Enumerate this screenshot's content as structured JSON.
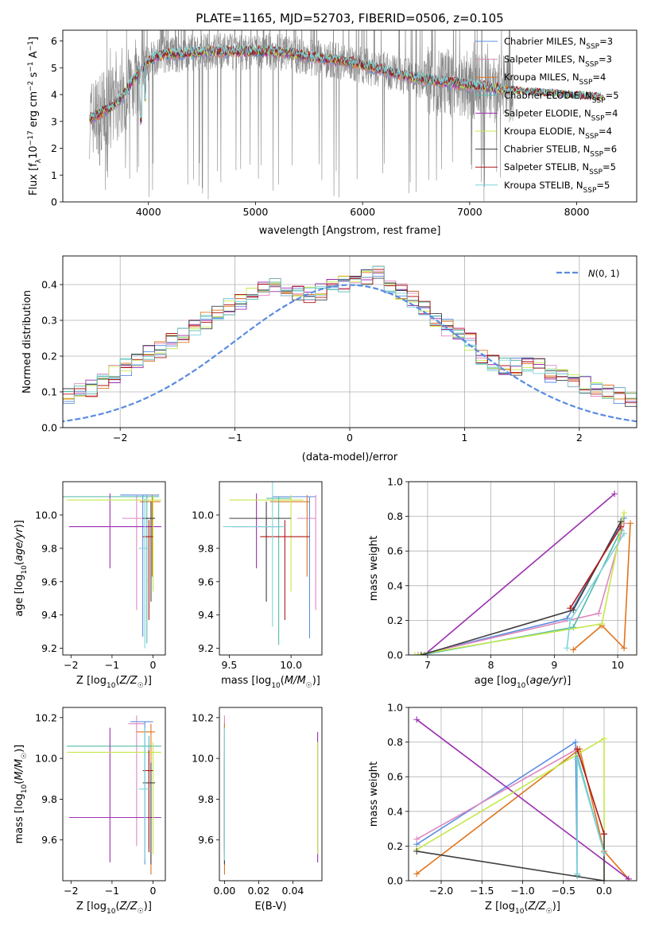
{
  "colors": {
    "Chabrier MILES": "#5a8fe0",
    "Salpeter MILES": "#e088c0",
    "Kroupa MILES": "#e0741c",
    "Chabrier ELODIE": "#55bba8",
    "Salpeter ELODIE": "#9c2fb0",
    "Kroupa ELODIE": "#c4e84a",
    "Chabrier STELIB": "#404040",
    "Salpeter STELIB": "#b01818",
    "Kroupa STELIB": "#7fd4dc",
    "data": "#888888",
    "normal": "#5b8be0"
  },
  "chart_data": [
    {
      "id": "spectrum",
      "type": "line",
      "title": "PLATE=1165, MJD=52703, FIBERID=0506, z=0.105",
      "xlabel": "wavelength [Angstrom, rest frame]",
      "ylabel_parts": [
        "Flux [f",
        "λ",
        "10",
        "−17",
        " erg cm",
        "−2",
        " s",
        "−1",
        " A",
        "−1",
        "]"
      ],
      "xlim": [
        3200,
        8560
      ],
      "ylim": [
        0,
        6.4
      ],
      "xticks": [
        4000,
        5000,
        6000,
        7000,
        8000
      ],
      "yticks": [
        0,
        1,
        2,
        3,
        4,
        5,
        6
      ],
      "continuum": {
        "x": [
          3450,
          3550,
          3650,
          3750,
          3850,
          3950,
          4050,
          4150,
          4300,
          4500,
          4700,
          4900,
          5100,
          5300,
          5500,
          5700,
          5900,
          6100,
          6300,
          6500,
          6700,
          6900,
          7100,
          7300
        ],
        "y": [
          3.1,
          3.3,
          3.5,
          3.9,
          4.5,
          5.0,
          5.4,
          5.5,
          5.5,
          5.6,
          5.6,
          5.6,
          5.6,
          5.55,
          5.4,
          5.3,
          5.2,
          5.0,
          4.8,
          4.6,
          4.5,
          4.4,
          4.3,
          4.2
        ]
      },
      "legend": [
        {
          "name": "Chabrier MILES",
          "sub": "SSP",
          "n": "3"
        },
        {
          "name": "Salpeter MILES",
          "sub": "SSP",
          "n": "3"
        },
        {
          "name": "Kroupa MILES",
          "sub": "SSP",
          "n": "4"
        },
        {
          "name": "Chabrier ELODIE",
          "sub": "SSP",
          "n": "5"
        },
        {
          "name": "Salpeter ELODIE",
          "sub": "SSP",
          "n": "4"
        },
        {
          "name": "Kroupa ELODIE",
          "sub": "SSP",
          "n": "4"
        },
        {
          "name": "Chabrier STELIB",
          "sub": "SSP",
          "n": "6"
        },
        {
          "name": "Salpeter STELIB",
          "sub": "SSP",
          "n": "5"
        },
        {
          "name": "Kroupa STELIB",
          "sub": "SSP",
          "n": "5"
        }
      ],
      "legend_placement": "upper-right"
    },
    {
      "id": "residuals",
      "type": "histogram",
      "xlabel": "(data-model)/error",
      "ylabel": "Normed distribution",
      "xlim": [
        -2.5,
        2.5
      ],
      "ylim": [
        0,
        0.48
      ],
      "xticks": [
        -2,
        -1,
        0,
        1,
        2
      ],
      "yticks": [
        0.0,
        0.1,
        0.2,
        0.3,
        0.4
      ],
      "grid": true,
      "bin_width": 0.1,
      "base_heights": [
        0.03,
        0.035,
        0.04,
        0.045,
        0.05,
        0.055,
        0.06,
        0.065,
        0.07,
        0.08,
        0.09,
        0.1,
        0.11,
        0.13,
        0.15,
        0.17,
        0.19,
        0.21,
        0.22,
        0.24,
        0.26,
        0.28,
        0.3,
        0.32,
        0.34,
        0.35,
        0.37,
        0.39,
        0.4,
        0.39,
        0.38,
        0.37,
        0.38,
        0.39,
        0.4,
        0.41,
        0.42,
        0.43,
        0.4,
        0.38,
        0.36,
        0.33,
        0.3,
        0.28,
        0.26,
        0.24,
        0.2,
        0.18,
        0.17,
        0.17,
        0.18,
        0.17,
        0.15,
        0.14,
        0.13,
        0.12,
        0.11,
        0.1,
        0.09,
        0.08,
        0.07,
        0.065,
        0.06,
        0.055,
        0.05,
        0.045,
        0.04,
        0.035,
        0.03,
        0.03
      ],
      "legend_label": "N(0,1)",
      "legend_placement": "upper-right"
    },
    {
      "id": "z-age",
      "type": "errorbar",
      "xlabel": "Z [log10(Z/Z☉)]",
      "ylabel": "age  [log10(age/yr)]",
      "xlim": [
        -2.2,
        0.3
      ],
      "ylim": [
        9.16,
        10.2
      ],
      "xticks": [
        -2,
        -1,
        0
      ],
      "yticks": [
        9.2,
        9.4,
        9.6,
        9.8,
        10.0
      ],
      "points": [
        {
          "s": "Chabrier MILES",
          "x": -0.25,
          "y": 10.12,
          "xe": [
            0.55,
            0.4
          ],
          "ye": [
            0.85,
            0.0
          ]
        },
        {
          "s": "Salpeter MILES",
          "x": -0.4,
          "y": 9.98,
          "xe": [
            0.35,
            0.35
          ],
          "ye": [
            0.55,
            0.14
          ]
        },
        {
          "s": "Kroupa MILES",
          "x": -0.02,
          "y": 10.08,
          "xe": [
            0.3,
            0.2
          ],
          "ye": [
            0.45,
            0.04
          ]
        },
        {
          "s": "Chabrier ELODIE",
          "x": -0.15,
          "y": 10.11,
          "xe": [
            2.05,
            0.3
          ],
          "ye": [
            0.88,
            0.01
          ]
        },
        {
          "s": "Salpeter ELODIE",
          "x": -1.05,
          "y": 9.93,
          "xe": [
            1.0,
            1.25
          ],
          "ye": [
            0.25,
            0.2
          ]
        },
        {
          "s": "Kroupa ELODIE",
          "x": 0.0,
          "y": 10.09,
          "xe": [
            2.1,
            0.2
          ],
          "ye": [
            0.55,
            0.03
          ]
        },
        {
          "s": "Chabrier STELIB",
          "x": -0.05,
          "y": 9.98,
          "xe": [
            0.2,
            0.1
          ],
          "ye": [
            0.5,
            0.1
          ]
        },
        {
          "s": "Salpeter STELIB",
          "x": -0.1,
          "y": 9.87,
          "xe": [
            0.15,
            0.1
          ],
          "ye": [
            0.5,
            0.1
          ]
        },
        {
          "s": "Kroupa STELIB",
          "x": -0.2,
          "y": 9.8,
          "xe": [
            0.15,
            0.1
          ],
          "ye": [
            0.6,
            0.3
          ]
        }
      ]
    },
    {
      "id": "mass-age",
      "type": "errorbar",
      "xlabel": "mass [log10(M/M☉)]",
      "xlim": [
        9.42,
        10.25
      ],
      "ylim": [
        9.16,
        10.2
      ],
      "xticks": [
        9.5,
        10.0
      ],
      "yticks": [
        9.2,
        9.4,
        9.6,
        9.8,
        10.0
      ],
      "points": [
        {
          "s": "Chabrier MILES",
          "x": 10.15,
          "y": 10.11,
          "xe": [
            0.3,
            0.05
          ],
          "ye": [
            0.85,
            0.0
          ]
        },
        {
          "s": "Salpeter MILES",
          "x": 10.2,
          "y": 9.98,
          "xe": [
            0.15,
            0.0
          ],
          "ye": [
            0.55,
            0.14
          ]
        },
        {
          "s": "Kroupa MILES",
          "x": 10.13,
          "y": 10.08,
          "xe": [
            0.3,
            0.02
          ],
          "ye": [
            0.45,
            0.04
          ]
        },
        {
          "s": "Chabrier ELODIE",
          "x": 9.9,
          "y": 10.1,
          "xe": [
            0.1,
            0.1
          ],
          "ye": [
            0.88,
            0.01
          ]
        },
        {
          "s": "Salpeter ELODIE",
          "x": 9.72,
          "y": 9.93,
          "xe": [
            0.2,
            0.2
          ],
          "ye": [
            0.25,
            0.2
          ]
        },
        {
          "s": "Kroupa ELODIE",
          "x": 10.0,
          "y": 10.09,
          "xe": [
            0.5,
            0.1
          ],
          "ye": [
            0.55,
            0.03
          ]
        },
        {
          "s": "Chabrier STELIB",
          "x": 9.8,
          "y": 9.98,
          "xe": [
            0.3,
            0.2
          ],
          "ye": [
            0.5,
            0.1
          ]
        },
        {
          "s": "Salpeter STELIB",
          "x": 9.95,
          "y": 9.87,
          "xe": [
            0.2,
            0.2
          ],
          "ye": [
            0.5,
            0.1
          ]
        },
        {
          "s": "Kroupa STELIB",
          "x": 9.85,
          "y": 9.93,
          "xe": [
            0.4,
            0.1
          ],
          "ye": [
            0.6,
            0.3
          ]
        }
      ]
    },
    {
      "id": "age-weight",
      "type": "line",
      "xlabel": "age  [log10(age/yr)]",
      "ylabel": "mass weight",
      "xlim": [
        6.7,
        10.3
      ],
      "ylim": [
        0,
        1.0
      ],
      "xticks": [
        7,
        8,
        9,
        10
      ],
      "yticks": [
        0.0,
        0.2,
        0.4,
        0.6,
        0.8,
        1.0
      ],
      "grid": true,
      "series": [
        {
          "s": "Chabrier MILES",
          "x": [
            6.85,
            9.2,
            10.1
          ],
          "y": [
            0.0,
            0.21,
            0.79
          ]
        },
        {
          "s": "Salpeter MILES",
          "x": [
            6.85,
            9.7,
            10.1
          ],
          "y": [
            0.0,
            0.24,
            0.76
          ]
        },
        {
          "s": "Kroupa MILES",
          "x": [
            9.3,
            9.75,
            10.1,
            10.2
          ],
          "y": [
            0.03,
            0.17,
            0.04,
            0.76
          ]
        },
        {
          "s": "Chabrier ELODIE",
          "x": [
            6.9,
            9.3,
            10.05
          ],
          "y": [
            0.0,
            0.16,
            0.72
          ]
        },
        {
          "s": "Salpeter ELODIE",
          "x": [
            6.95,
            9.95
          ],
          "y": [
            0.0,
            0.93
          ]
        },
        {
          "s": "Kroupa ELODIE",
          "x": [
            6.8,
            9.75,
            10.1
          ],
          "y": [
            0.0,
            0.18,
            0.82
          ]
        },
        {
          "s": "Chabrier STELIB",
          "x": [
            6.9,
            9.3,
            10.05
          ],
          "y": [
            0.0,
            0.26,
            0.77
          ]
        },
        {
          "s": "Salpeter STELIB",
          "x": [
            9.25,
            10.05
          ],
          "y": [
            0.27,
            0.74
          ]
        },
        {
          "s": "Kroupa STELIB",
          "x": [
            9.2,
            9.25,
            10.1
          ],
          "y": [
            0.04,
            0.2,
            0.7
          ]
        }
      ]
    },
    {
      "id": "z-mass",
      "type": "errorbar",
      "xlabel": "Z [log10(Z/Z☉)]",
      "ylabel": "mass [log10(M/M☉)]",
      "xlim": [
        -2.2,
        0.3
      ],
      "ylim": [
        9.4,
        10.25
      ],
      "xticks": [
        -2,
        -1,
        0
      ],
      "yticks": [
        9.6,
        9.8,
        10.0,
        10.2
      ],
      "points": [
        {
          "s": "Chabrier MILES",
          "x": -0.2,
          "y": 10.18,
          "xe": [
            0.35,
            0.2
          ],
          "ye": [
            0.7,
            0.0
          ]
        },
        {
          "s": "Salpeter MILES",
          "x": -0.4,
          "y": 10.17,
          "xe": [
            0.2,
            0.2
          ],
          "ye": [
            0.6,
            0.04
          ]
        },
        {
          "s": "Kroupa MILES",
          "x": -0.05,
          "y": 10.13,
          "xe": [
            0.35,
            0.1
          ],
          "ye": [
            0.7,
            0.04
          ]
        },
        {
          "s": "Chabrier ELODIE",
          "x": -0.1,
          "y": 10.06,
          "xe": [
            2.0,
            0.3
          ],
          "ye": [
            0.5,
            0.05
          ]
        },
        {
          "s": "Salpeter ELODIE",
          "x": -1.05,
          "y": 9.71,
          "xe": [
            1.0,
            1.25
          ],
          "ye": [
            0.22,
            0.44
          ]
        },
        {
          "s": "Kroupa ELODIE",
          "x": 0.0,
          "y": 10.03,
          "xe": [
            2.1,
            0.2
          ],
          "ye": [
            0.5,
            0.05
          ]
        },
        {
          "s": "Chabrier STELIB",
          "x": -0.05,
          "y": 9.88,
          "xe": [
            0.2,
            0.1
          ],
          "ye": [
            0.4,
            0.1
          ]
        },
        {
          "s": "Salpeter STELIB",
          "x": -0.1,
          "y": 9.94,
          "xe": [
            0.15,
            0.1
          ],
          "ye": [
            0.4,
            0.1
          ]
        },
        {
          "s": "Kroupa STELIB",
          "x": -0.2,
          "y": 9.85,
          "xe": [
            0.15,
            0.1
          ],
          "ye": [
            0.35,
            0.3
          ]
        }
      ]
    },
    {
      "id": "ebv-mass",
      "type": "errorbar",
      "xlabel": "E(B-V)",
      "xlim": [
        -0.003,
        0.057
      ],
      "ylim": [
        9.4,
        10.25
      ],
      "xticks": [
        0.0,
        0.02,
        0.04
      ],
      "yticks": [
        9.6,
        9.8,
        10.0,
        10.2
      ],
      "points": [
        {
          "s": "Chabrier MILES",
          "x": 0.0,
          "y": 10.18,
          "xe": [
            0,
            0
          ],
          "ye": [
            0.7,
            0.0
          ]
        },
        {
          "s": "Salpeter MILES",
          "x": 0.0,
          "y": 10.17,
          "xe": [
            0,
            0
          ],
          "ye": [
            0.6,
            0.04
          ]
        },
        {
          "s": "Kroupa MILES",
          "x": 0.0,
          "y": 10.13,
          "xe": [
            0,
            0
          ],
          "ye": [
            0.7,
            0.04
          ]
        },
        {
          "s": "Chabrier ELODIE",
          "x": 0.0,
          "y": 10.06,
          "xe": [
            0,
            0
          ],
          "ye": [
            0.5,
            0.05
          ]
        },
        {
          "s": "Salpeter ELODIE",
          "x": 0.0545,
          "y": 9.71,
          "xe": [
            0,
            0
          ],
          "ye": [
            0.22,
            0.42
          ]
        },
        {
          "s": "Kroupa ELODIE",
          "x": 0.0545,
          "y": 10.03,
          "xe": [
            0,
            0
          ],
          "ye": [
            0.5,
            0.05
          ]
        },
        {
          "s": "Chabrier STELIB",
          "x": 0.0,
          "y": 9.88,
          "xe": [
            0,
            0
          ],
          "ye": [
            0.4,
            0.1
          ]
        },
        {
          "s": "Salpeter STELIB",
          "x": 0.0,
          "y": 9.94,
          "xe": [
            0,
            0
          ],
          "ye": [
            0.4,
            0.1
          ]
        },
        {
          "s": "Kroupa STELIB",
          "x": 0.0,
          "y": 9.85,
          "xe": [
            0,
            0
          ],
          "ye": [
            0.35,
            0.3
          ]
        }
      ]
    },
    {
      "id": "z-weight",
      "type": "line",
      "xlabel": "Z [log10(Z/Z☉)]",
      "ylabel": "mass weight",
      "xlim": [
        -2.4,
        0.4
      ],
      "ylim": [
        0,
        1.0
      ],
      "xticks": [
        -2.0,
        -1.5,
        -1.0,
        -0.5,
        0.0
      ],
      "yticks": [
        0.0,
        0.2,
        0.4,
        0.6,
        0.8,
        1.0
      ],
      "grid": true,
      "series": [
        {
          "s": "Chabrier MILES",
          "x": [
            -2.3,
            -0.35,
            -0.33
          ],
          "y": [
            0.21,
            0.8,
            0.03
          ]
        },
        {
          "s": "Salpeter MILES",
          "x": [
            -2.3,
            -0.33,
            -0.33
          ],
          "y": [
            0.24,
            0.76,
            0.03
          ]
        },
        {
          "s": "Kroupa MILES",
          "x": [
            -2.3,
            -0.3,
            0.0,
            0.3
          ],
          "y": [
            0.04,
            0.76,
            0.17,
            0.01
          ]
        },
        {
          "s": "Chabrier ELODIE",
          "x": [
            -0.33,
            -0.33,
            0.0
          ],
          "y": [
            0.03,
            0.72,
            0.16
          ]
        },
        {
          "s": "Salpeter ELODIE",
          "x": [
            -2.3,
            0.3
          ],
          "y": [
            0.93,
            0.01
          ]
        },
        {
          "s": "Kroupa ELODIE",
          "x": [
            -2.3,
            0.0,
            0.0
          ],
          "y": [
            0.18,
            0.82,
            0.0
          ]
        },
        {
          "s": "Chabrier STELIB",
          "x": [
            -2.3,
            0.0,
            0.0
          ],
          "y": [
            0.17,
            0.0,
            0.27
          ]
        },
        {
          "s": "Salpeter STELIB",
          "x": [
            -0.33,
            0.0
          ],
          "y": [
            0.76,
            0.27
          ]
        },
        {
          "s": "Kroupa STELIB",
          "x": [
            -0.33,
            -0.33,
            0.0
          ],
          "y": [
            0.04,
            0.7,
            0.16
          ]
        }
      ]
    }
  ]
}
